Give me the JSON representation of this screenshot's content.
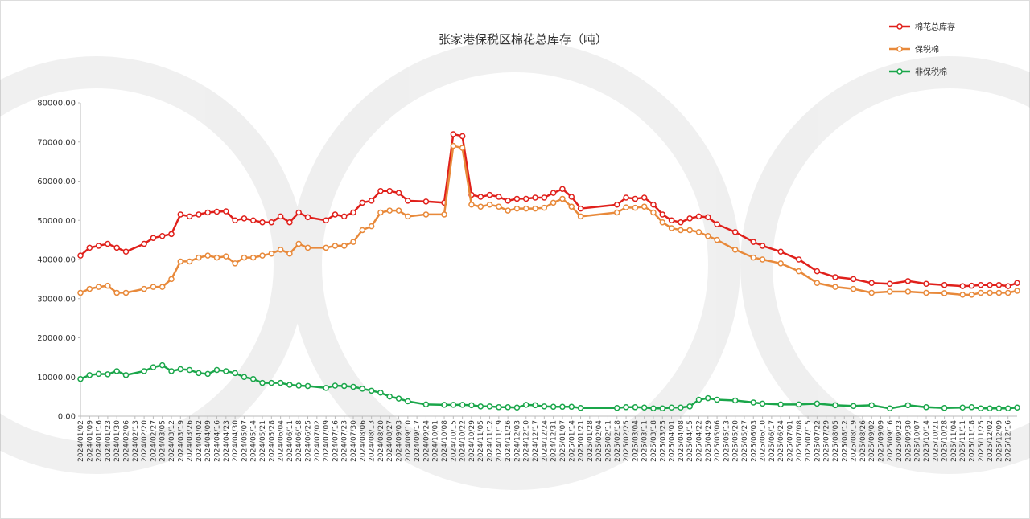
{
  "chart_data": {
    "type": "line",
    "title": "张家港保税区棉花总库存（吨）",
    "x": [
      "2024/01/02",
      "2024/01/09",
      "2024/01/16",
      "2024/01/23",
      "2024/01/30",
      "2024/02/06",
      "2024/02/20",
      "2024/02/27",
      "2024/03/05",
      "2024/03/12",
      "2024/03/19",
      "2024/03/26",
      "2024/04/02",
      "2024/04/09",
      "2024/04/16",
      "2024/04/23",
      "2024/04/30",
      "2024/05/07",
      "2024/05/14",
      "2024/05/21",
      "2024/05/28",
      "2024/06/04",
      "2024/06/11",
      "2024/06/18",
      "2024/06/25",
      "2024/07/09",
      "2024/07/16",
      "2024/07/23",
      "2024/07/30",
      "2024/08/06",
      "2024/08/13",
      "2024/08/20",
      "2024/08/27",
      "2024/09/03",
      "2024/09/10",
      "2024/09/24",
      "2024/10/08",
      "2024/10/15",
      "2024/10/22",
      "2024/10/29",
      "2024/11/05",
      "2024/11/12",
      "2024/11/19",
      "2024/11/26",
      "2024/12/03",
      "2024/12/10",
      "2024/12/17",
      "2024/12/24",
      "2024/12/31",
      "2025/01/07",
      "2025/01/14",
      "2025/01/21",
      "2025/02/18",
      "2025/02/25",
      "2025/03/04",
      "2025/03/11",
      "2025/03/18",
      "2025/03/25",
      "2025/04/01",
      "2025/04/08",
      "2025/04/15",
      "2025/04/22",
      "2025/04/29",
      "2025/05/06",
      "2025/05/20",
      "2025/06/03",
      "2025/06/10",
      "2025/06/24",
      "2025/07/08",
      "2025/07/22",
      "2025/08/05",
      "2025/08/19",
      "2025/09/02",
      "2025/09/16",
      "2025/09/30",
      "2025/10/14",
      "2025/10/28",
      "2025/11/11",
      "2025/11/18",
      "2025/11/25",
      "2025/12/02",
      "2025/12/09",
      "2025/12/16",
      "2025/12/23"
    ],
    "series": [
      {
        "name": "棉花总库存",
        "color": "#e0201b",
        "values": [
          41000,
          43000,
          43500,
          44000,
          43000,
          42000,
          44000,
          45500,
          46000,
          46500,
          51500,
          51000,
          51500,
          52000,
          52200,
          52300,
          50000,
          50500,
          50000,
          49500,
          49500,
          51000,
          49500,
          52000,
          50800,
          50000,
          51500,
          51000,
          52000,
          54500,
          55000,
          57500,
          57500,
          57000,
          55000,
          54800,
          54500,
          72000,
          71500,
          56500,
          56000,
          56500,
          56000,
          55000,
          55500,
          55500,
          55800,
          55800,
          57000,
          58000,
          56000,
          53000,
          54000,
          55800,
          55500,
          55800,
          54000,
          51500,
          50000,
          49500,
          50500,
          51000,
          50800,
          49000,
          47000,
          44500,
          43500,
          42000,
          40000,
          37000,
          35500,
          35000,
          34000,
          33800,
          34500,
          33800,
          33500,
          33200,
          33300,
          33500,
          33500,
          33500,
          33200,
          34000
        ]
      },
      {
        "name": "保税棉",
        "color": "#e8893a",
        "values": [
          31500,
          32500,
          33000,
          33300,
          31500,
          31500,
          32500,
          33000,
          33000,
          35000,
          39500,
          39500,
          40500,
          41000,
          40500,
          40800,
          39000,
          40500,
          40500,
          41000,
          41500,
          42500,
          41500,
          44000,
          43000,
          43000,
          43500,
          43500,
          44500,
          47500,
          48500,
          52000,
          52500,
          52500,
          51000,
          51500,
          51500,
          69000,
          68500,
          54000,
          53500,
          54000,
          53500,
          52500,
          53000,
          53000,
          53000,
          53200,
          54500,
          55500,
          53500,
          51000,
          52000,
          53300,
          53200,
          53500,
          52000,
          49500,
          48000,
          47500,
          47500,
          47000,
          46000,
          45000,
          42500,
          40500,
          40000,
          39000,
          37000,
          34000,
          33000,
          32500,
          31500,
          31800,
          31800,
          31500,
          31400,
          31000,
          31000,
          31500,
          31500,
          31500,
          31500,
          32000
        ]
      },
      {
        "name": "非保税棉",
        "color": "#1aa64a",
        "values": [
          9500,
          10500,
          10800,
          10700,
          11500,
          10500,
          11500,
          12500,
          13000,
          11500,
          12000,
          11800,
          11000,
          10800,
          11800,
          11500,
          11000,
          10000,
          9500,
          8500,
          8500,
          8500,
          8000,
          7800,
          7700,
          7200,
          7800,
          7700,
          7500,
          7000,
          6500,
          6000,
          5000,
          4500,
          3800,
          3000,
          2900,
          2900,
          2900,
          2800,
          2500,
          2500,
          2300,
          2300,
          2200,
          2900,
          2800,
          2500,
          2400,
          2400,
          2400,
          2100,
          2100,
          2300,
          2300,
          2200,
          2000,
          2000,
          2200,
          2200,
          2500,
          4200,
          4600,
          4200,
          4000,
          3500,
          3200,
          3000,
          3000,
          3200,
          2800,
          2600,
          2800,
          2000,
          2800,
          2300,
          2100,
          2200,
          2300,
          2000,
          2000,
          2000,
          2000,
          2200
        ]
      }
    ],
    "xlim": [
      "2024/01/02",
      "2025/12/23"
    ],
    "xticks": [
      "2024/01/02",
      "2024/01/09",
      "2024/01/16",
      "2024/01/23",
      "2024/01/30",
      "2024/02/06",
      "2024/02/13",
      "2024/02/20",
      "2024/02/27",
      "2024/03/05",
      "2024/03/12",
      "2024/03/19",
      "2024/03/26",
      "2024/04/02",
      "2024/04/09",
      "2024/04/16",
      "2024/04/23",
      "2024/04/30",
      "2024/05/07",
      "2024/05/14",
      "2024/05/21",
      "2024/05/28",
      "2024/06/04",
      "2024/06/11",
      "2024/06/18",
      "2024/06/25",
      "2024/07/02",
      "2024/07/09",
      "2024/07/16",
      "2024/07/23",
      "2024/07/30",
      "2024/08/06",
      "2024/08/13",
      "2024/08/20",
      "2024/08/27",
      "2024/09/03",
      "2024/09/10",
      "2024/09/17",
      "2024/09/24",
      "2024/10/01",
      "2024/10/08",
      "2024/10/15",
      "2024/10/22",
      "2024/10/29",
      "2024/11/05",
      "2024/11/12",
      "2024/11/19",
      "2024/11/26",
      "2024/12/03",
      "2024/12/10",
      "2024/12/17",
      "2024/12/24",
      "2024/12/31",
      "2025/01/07",
      "2025/01/14",
      "2025/01/21",
      "2025/01/28",
      "2025/02/04",
      "2025/02/11",
      "2025/02/18",
      "2025/02/25",
      "2025/03/04",
      "2025/03/11",
      "2025/03/18",
      "2025/03/25",
      "2025/04/01",
      "2025/04/08",
      "2025/04/15",
      "2025/04/22",
      "2025/04/29",
      "2025/05/06",
      "2025/05/13",
      "2025/05/20",
      "2025/05/27",
      "2025/06/03",
      "2025/06/10",
      "2025/06/17",
      "2025/06/24",
      "2025/07/01",
      "2025/07/08",
      "2025/07/15",
      "2025/07/22",
      "2025/07/29",
      "2025/08/05",
      "2025/08/12",
      "2025/08/19",
      "2025/08/26",
      "2025/09/02",
      "2025/09/09",
      "2025/09/16",
      "2025/09/23",
      "2025/09/30",
      "2025/10/07",
      "2025/10/14",
      "2025/10/21",
      "2025/10/28",
      "2025/11/04",
      "2025/11/11",
      "2025/11/18",
      "2025/11/25",
      "2025/12/02",
      "2025/12/09",
      "2025/12/16"
    ],
    "ylim": [
      0,
      80000
    ],
    "yticks": [
      {
        "value": 0,
        "label": "0.00"
      },
      {
        "value": 10000,
        "label": "10000.00"
      },
      {
        "value": 20000,
        "label": "20000.00"
      },
      {
        "value": 30000,
        "label": "30000.00"
      },
      {
        "value": 40000,
        "label": "40000.00"
      },
      {
        "value": 50000,
        "label": "50000.00"
      },
      {
        "value": 60000,
        "label": "60000.00"
      },
      {
        "value": 70000,
        "label": "70000.00"
      },
      {
        "value": 80000,
        "label": "80000.00"
      }
    ],
    "grid": false,
    "legend": "top-right"
  }
}
